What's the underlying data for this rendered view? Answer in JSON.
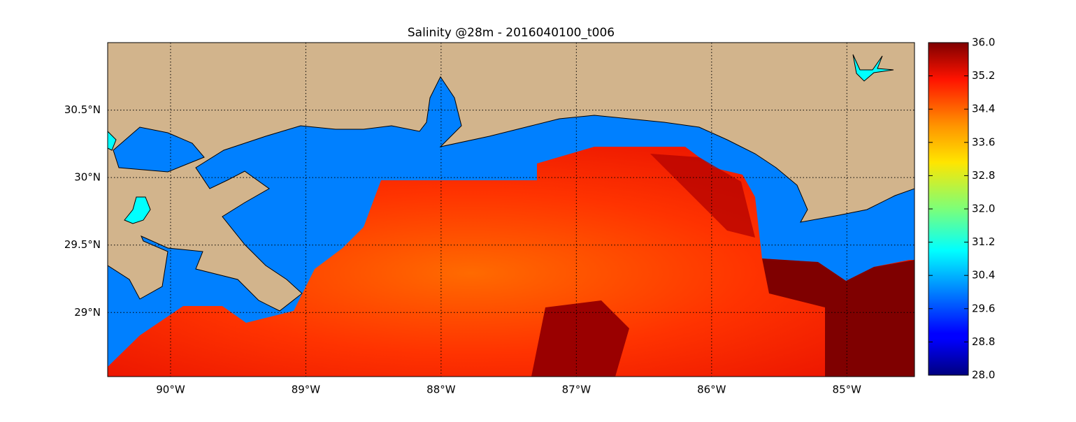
{
  "chart_data": {
    "type": "map",
    "title": "Salinity @28m - 2016040100_t006",
    "xlim": [
      -90.465,
      -84.5
    ],
    "ylim": [
      28.525,
      31.0
    ],
    "xticks": [
      {
        "value": -90,
        "label": "90°W"
      },
      {
        "value": -89,
        "label": "89°W"
      },
      {
        "value": -88,
        "label": "88°W"
      },
      {
        "value": -87,
        "label": "87°W"
      },
      {
        "value": -86,
        "label": "86°W"
      },
      {
        "value": -85,
        "label": "85°W"
      }
    ],
    "yticks": [
      {
        "value": 29,
        "label": "29°N"
      },
      {
        "value": 29.5,
        "label": "29.5°N"
      },
      {
        "value": 30,
        "label": "30°N"
      },
      {
        "value": 30.5,
        "label": "30.5°N"
      }
    ],
    "grid": true,
    "colorbar": {
      "lim": [
        28.0,
        36.0
      ],
      "colormap": "jet",
      "ticks": [
        {
          "value": 28,
          "label": "28.0"
        },
        {
          "value": 28.8,
          "label": "28.8"
        },
        {
          "value": 29.6,
          "label": "29.6"
        },
        {
          "value": 30.4,
          "label": "30.4"
        },
        {
          "value": 31.2,
          "label": "31.2"
        },
        {
          "value": 32,
          "label": "32.0"
        },
        {
          "value": 32.8,
          "label": "32.8"
        },
        {
          "value": 33.6,
          "label": "33.6"
        },
        {
          "value": 34.4,
          "label": "34.4"
        },
        {
          "value": 35.2,
          "label": "35.2"
        },
        {
          "value": 36,
          "label": "36.0"
        }
      ]
    }
  }
}
